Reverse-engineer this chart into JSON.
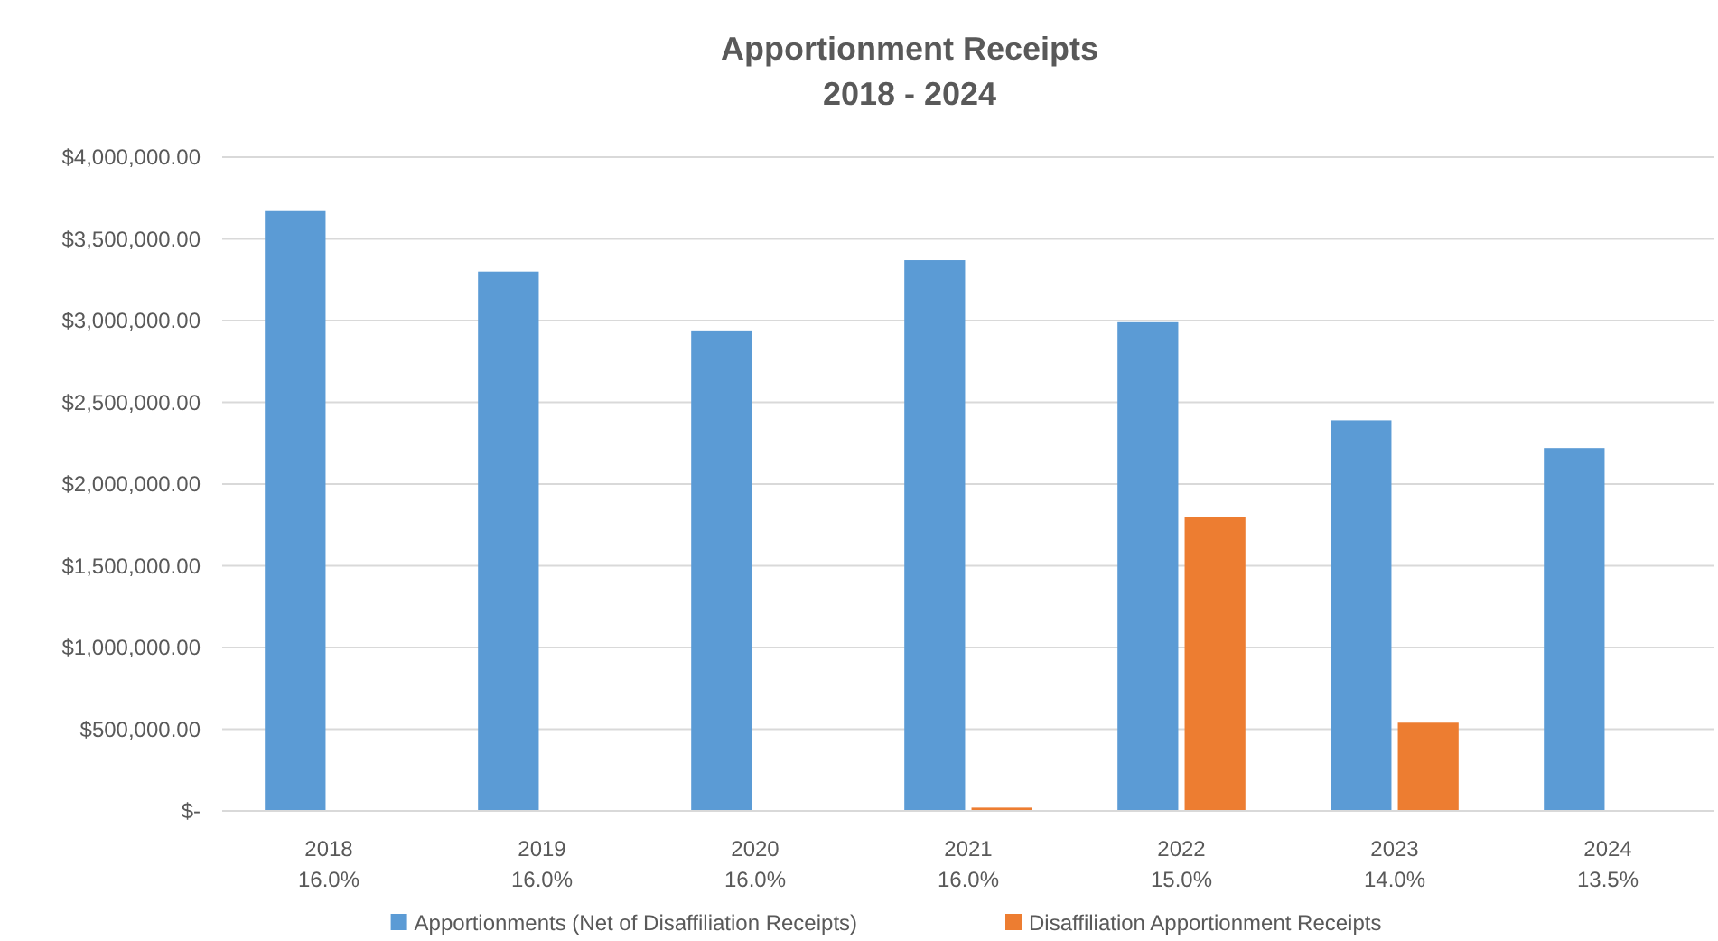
{
  "chart_data": {
    "type": "bar",
    "title": "Apportionment Receipts\n2018 - 2024",
    "categories": [
      "2018\n16.0%",
      "2019\n16.0%",
      "2020\n16.0%",
      "2021\n16.0%",
      "2022\n15.0%",
      "2023\n14.0%",
      "2024\n13.5%"
    ],
    "series": [
      {
        "name": "Apportionments (Net of Disaffiliation Receipts)",
        "color": "#5b9bd5",
        "values": [
          3670000,
          3300000,
          2940000,
          3370000,
          2990000,
          2390000,
          2220000
        ]
      },
      {
        "name": "Disaffiliation Apportionment Receipts",
        "color": "#ed7d31",
        "values": [
          null,
          null,
          null,
          20000,
          1800000,
          540000,
          null
        ]
      }
    ],
    "ylim": [
      0,
      4000000
    ],
    "yticks": [
      {
        "value": 0,
        "label": "$-"
      },
      {
        "value": 500000,
        "label": "$500,000.00"
      },
      {
        "value": 1000000,
        "label": "$1,000,000.00"
      },
      {
        "value": 1500000,
        "label": "$1,500,000.00"
      },
      {
        "value": 2000000,
        "label": "$2,000,000.00"
      },
      {
        "value": 2500000,
        "label": "$2,500,000.00"
      },
      {
        "value": 3000000,
        "label": "$3,000,000.00"
      },
      {
        "value": 3500000,
        "label": "$3,500,000.00"
      },
      {
        "value": 4000000,
        "label": "$4,000,000.00"
      }
    ],
    "grid": "y",
    "legend": "bottom"
  }
}
